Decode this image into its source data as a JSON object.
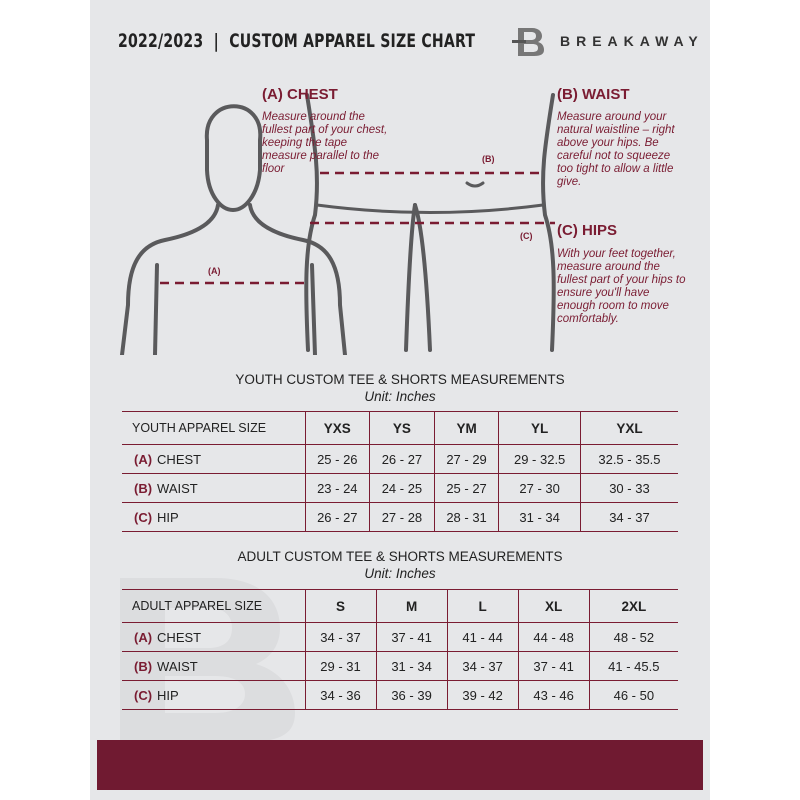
{
  "header": {
    "title": "2022/2023  |  CUSTOM APPAREL SIZE CHART",
    "brand": "BREAKAWAY"
  },
  "guide": {
    "chest": {
      "heading": "(A) CHEST",
      "text": "Measure around the fullest part of your chest, keeping the tape measure parallel to the floor",
      "marker": "(A)"
    },
    "waist": {
      "heading": "(B) WAIST",
      "text": "Measure around your natural waistline – right above your hips. Be careful not to squeeze too tight to allow a little give.",
      "marker": "(B)"
    },
    "hips": {
      "heading": "(C) HIPS",
      "text": "With your feet together, measure around the fullest part of your hips to ensure you'll have enough room to move comfortably.",
      "marker": "(C)"
    }
  },
  "youth": {
    "title": "YOUTH CUSTOM TEE & SHORTS MEASUREMENTS",
    "unit": "Unit: Inches",
    "size_label": "YOUTH APPAREL SIZE",
    "sizes": [
      "YXS",
      "YS",
      "YM",
      "YL",
      "YXL"
    ],
    "rows": [
      {
        "letter": "(A)",
        "name": "CHEST",
        "values": [
          "25 - 26",
          "26 - 27",
          "27 - 29",
          "29 - 32.5",
          "32.5 - 35.5"
        ]
      },
      {
        "letter": "(B)",
        "name": "WAIST",
        "values": [
          "23 - 24",
          "24 - 25",
          "25 - 27",
          "27 - 30",
          "30 - 33"
        ]
      },
      {
        "letter": "(C)",
        "name": "HIP",
        "values": [
          "26 - 27",
          "27 - 28",
          "28 - 31",
          "31 - 34",
          "34 - 37"
        ]
      }
    ]
  },
  "adult": {
    "title": "ADULT CUSTOM TEE & SHORTS MEASUREMENTS",
    "unit": "Unit: Inches",
    "size_label": "ADULT APPAREL SIZE",
    "sizes": [
      "S",
      "M",
      "L",
      "XL",
      "2XL"
    ],
    "rows": [
      {
        "letter": "(A)",
        "name": "CHEST",
        "values": [
          "34 - 37",
          "37 - 41",
          "41 - 44",
          "44 - 48",
          "48 - 52"
        ]
      },
      {
        "letter": "(B)",
        "name": "WAIST",
        "values": [
          "29 - 31",
          "31 - 34",
          "34 - 37",
          "37 - 41",
          "41 - 45.5"
        ]
      },
      {
        "letter": "(C)",
        "name": "HIP",
        "values": [
          "34 - 36",
          "36 - 39",
          "39 - 42",
          "43 - 46",
          "46 - 50"
        ]
      }
    ]
  },
  "colors": {
    "accent": "#7a1c32",
    "background": "#e6e7e9",
    "footer": "#701a31"
  }
}
